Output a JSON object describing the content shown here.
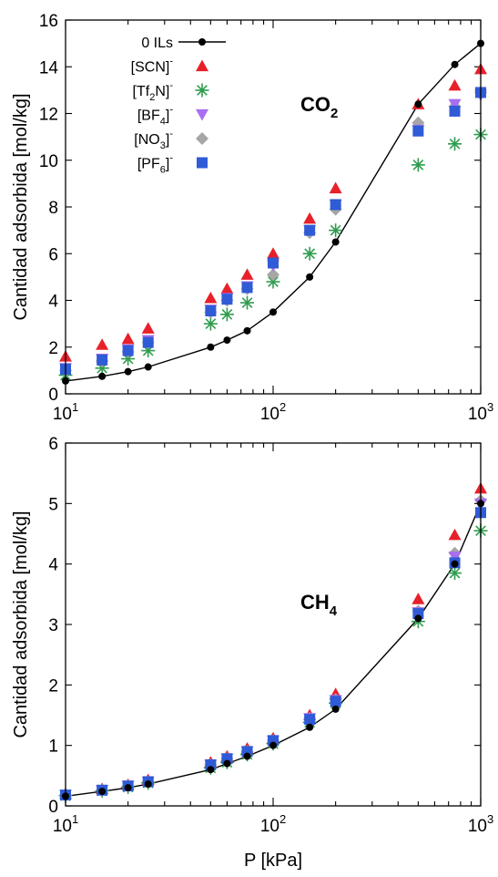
{
  "legend": {
    "entries": [
      {
        "key": "il0",
        "base": "0 ILs",
        "sub": "",
        "tail": "",
        "sup": ""
      },
      {
        "key": "scn",
        "base": "[SCN]",
        "sub": "",
        "tail": "",
        "sup": "-"
      },
      {
        "key": "tf2n",
        "base": "[Tf",
        "sub": "2",
        "tail": "N]",
        "sup": "-"
      },
      {
        "key": "bf4",
        "base": "[BF",
        "sub": "4",
        "tail": "]",
        "sup": "-"
      },
      {
        "key": "no3",
        "base": "[NO",
        "sub": "3",
        "tail": "]",
        "sup": "-"
      },
      {
        "key": "pf6",
        "base": "[PF",
        "sub": "6",
        "tail": "]",
        "sup": "-"
      }
    ]
  },
  "styles": {
    "il0": {
      "marker": "circle",
      "color": "#000000"
    },
    "scn": {
      "marker": "triangle-up",
      "color": "#e8202a"
    },
    "tf2n": {
      "marker": "asterisk",
      "color": "#2e9c4e"
    },
    "bf4": {
      "marker": "triangle-down",
      "color": "#a86ef0"
    },
    "no3": {
      "marker": "diamond",
      "color": "#a6a6a6"
    },
    "pf6": {
      "marker": "square",
      "color": "#2f5bd6"
    }
  },
  "chart_data": [
    {
      "type": "scatter",
      "annotation": {
        "base": "CO",
        "sub": "2"
      },
      "xlabel": "",
      "ylabel": "Cantidad adsorbida [mol/kg]",
      "xscale": "log",
      "xlim": [
        10,
        1000
      ],
      "ylim": [
        0,
        16
      ],
      "xticks": [
        10,
        100,
        1000
      ],
      "xtick_labels": [
        {
          "base": "10",
          "exp": "1"
        },
        {
          "base": "10",
          "exp": "2"
        },
        {
          "base": "10",
          "exp": "3"
        }
      ],
      "yticks": [
        0,
        2,
        4,
        6,
        8,
        10,
        12,
        14,
        16
      ],
      "ytick_labels": [
        "0",
        "2",
        "4",
        "6",
        "8",
        "10",
        "12",
        "14",
        "16"
      ],
      "grid": false,
      "legend_position": "top-left",
      "x": [
        10,
        15,
        20,
        25,
        50,
        60,
        75,
        100,
        150,
        200,
        500,
        750,
        1000
      ],
      "series": [
        {
          "key": "il0",
          "line": true,
          "values": [
            0.55,
            0.75,
            0.95,
            1.15,
            2.0,
            2.3,
            2.7,
            3.5,
            5.0,
            6.5,
            12.4,
            14.1,
            15.0
          ]
        },
        {
          "key": "scn",
          "values": [
            1.6,
            2.1,
            2.35,
            2.8,
            4.1,
            4.5,
            5.1,
            6.0,
            7.5,
            8.8,
            12.4,
            13.2,
            13.9
          ]
        },
        {
          "key": "tf2n",
          "values": [
            0.8,
            1.1,
            1.5,
            1.85,
            3.0,
            3.4,
            3.9,
            4.8,
            6.0,
            7.0,
            9.8,
            10.7,
            11.1
          ]
        },
        {
          "key": "bf4",
          "values": [
            1.1,
            1.5,
            1.9,
            2.3,
            3.6,
            4.1,
            4.6,
            5.5,
            7.0,
            8.1,
            11.3,
            12.4,
            12.8
          ]
        },
        {
          "key": "no3",
          "values": [
            1.0,
            1.4,
            1.8,
            2.2,
            3.5,
            4.0,
            4.5,
            5.1,
            6.9,
            7.9,
            11.6,
            12.3,
            12.9
          ]
        },
        {
          "key": "pf6",
          "values": [
            1.05,
            1.45,
            1.85,
            2.2,
            3.55,
            4.05,
            4.55,
            5.6,
            7.0,
            8.1,
            11.25,
            12.1,
            12.9
          ]
        }
      ]
    },
    {
      "type": "scatter",
      "annotation": {
        "base": "CH",
        "sub": "4"
      },
      "xlabel": "P [kPa]",
      "ylabel": "Cantidad adsorbida [mol/kg]",
      "xscale": "log",
      "xlim": [
        10,
        1000
      ],
      "ylim": [
        0,
        6
      ],
      "xticks": [
        10,
        100,
        1000
      ],
      "xtick_labels": [
        {
          "base": "10",
          "exp": "1"
        },
        {
          "base": "10",
          "exp": "2"
        },
        {
          "base": "10",
          "exp": "3"
        }
      ],
      "yticks": [
        0,
        1,
        2,
        3,
        4,
        5,
        6
      ],
      "ytick_labels": [
        "0",
        "1",
        "2",
        "3",
        "4",
        "5",
        "6"
      ],
      "grid": false,
      "legend_position": "none",
      "x": [
        10,
        15,
        20,
        25,
        50,
        60,
        75,
        100,
        150,
        200,
        500,
        750,
        1000
      ],
      "series": [
        {
          "key": "il0",
          "line": true,
          "values": [
            0.16,
            0.24,
            0.3,
            0.36,
            0.6,
            0.7,
            0.82,
            1.0,
            1.3,
            1.6,
            3.1,
            4.0,
            5.0
          ]
        },
        {
          "key": "scn",
          "values": [
            0.2,
            0.28,
            0.35,
            0.43,
            0.72,
            0.82,
            0.95,
            1.12,
            1.5,
            1.85,
            3.42,
            4.48,
            5.25
          ]
        },
        {
          "key": "tf2n",
          "values": [
            0.17,
            0.25,
            0.31,
            0.38,
            0.63,
            0.72,
            0.85,
            1.03,
            1.38,
            1.7,
            3.05,
            3.85,
            4.55
          ]
        },
        {
          "key": "bf4",
          "values": [
            0.18,
            0.26,
            0.33,
            0.4,
            0.68,
            0.78,
            0.9,
            1.08,
            1.45,
            1.75,
            3.2,
            4.12,
            5.0
          ]
        },
        {
          "key": "no3",
          "values": [
            0.18,
            0.26,
            0.33,
            0.4,
            0.68,
            0.78,
            0.9,
            1.08,
            1.45,
            1.76,
            3.22,
            4.18,
            5.05
          ]
        },
        {
          "key": "pf6",
          "values": [
            0.18,
            0.26,
            0.33,
            0.4,
            0.68,
            0.78,
            0.9,
            1.08,
            1.43,
            1.73,
            3.18,
            4.02,
            4.85
          ]
        }
      ]
    }
  ]
}
